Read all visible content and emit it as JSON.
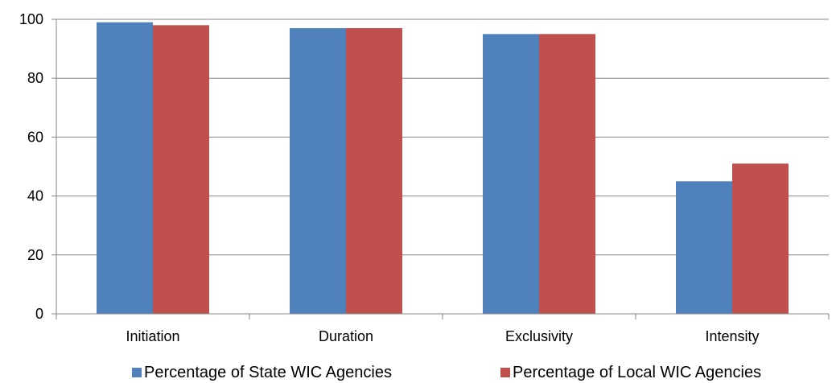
{
  "chart_data": {
    "type": "bar",
    "title": "",
    "xlabel": "",
    "ylabel": "",
    "categories": [
      "Initiation",
      "Duration",
      "Exclusivity",
      "Intensity"
    ],
    "series": [
      {
        "name": "Percentage of State WIC Agencies",
        "values": [
          99,
          97,
          95,
          45
        ],
        "color": "#4F81BD"
      },
      {
        "name": "Percentage of Local WIC Agencies",
        "values": [
          98,
          97,
          95,
          51
        ],
        "color": "#C0504D"
      }
    ],
    "ylim": [
      0,
      100
    ],
    "yticks": [
      0,
      20,
      40,
      60,
      80,
      100
    ],
    "grid": true,
    "legend_position": "bottom"
  }
}
